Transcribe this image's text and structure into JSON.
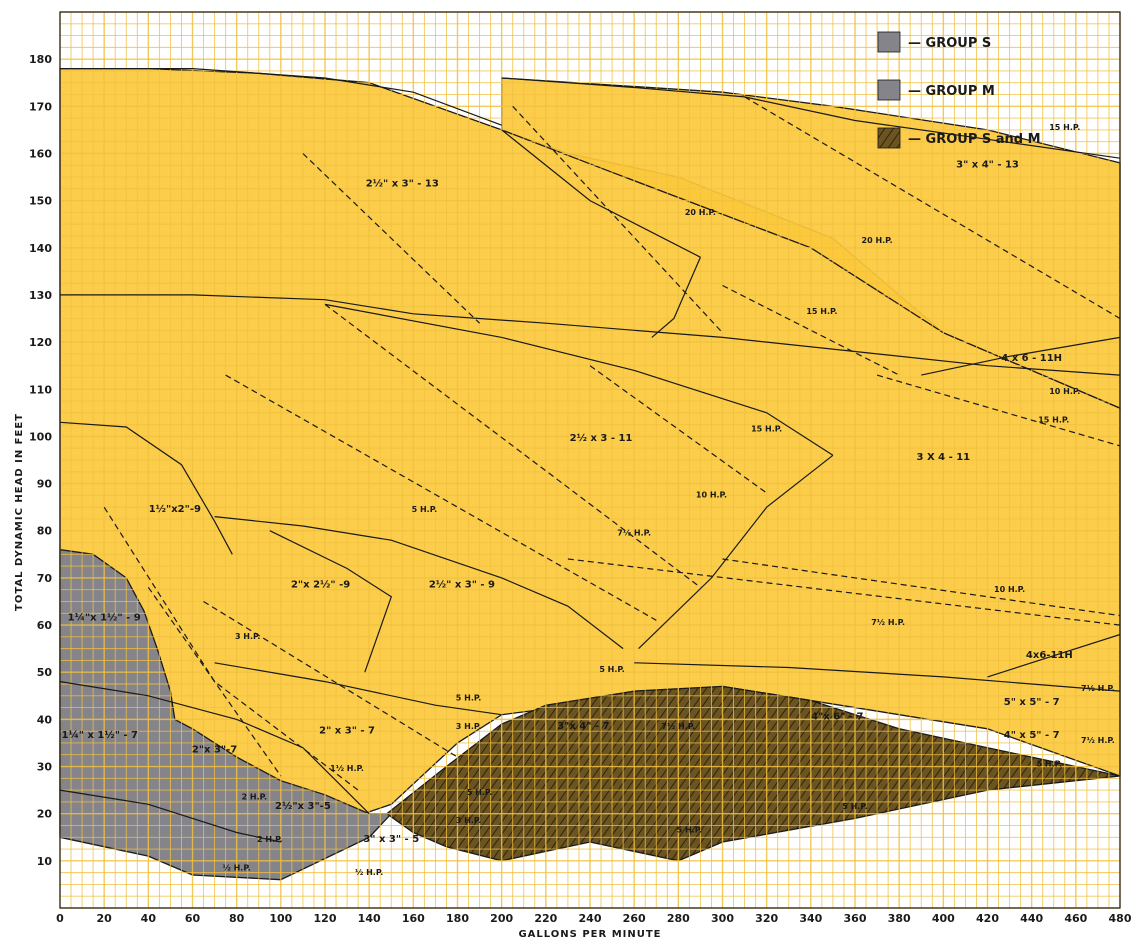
{
  "chart_data": {
    "type": "area",
    "xlabel": "GALLONS PER MINUTE",
    "ylabel": "TOTAL DYNAMIC HEAD IN FEET",
    "xlim": [
      0,
      480
    ],
    "ylim": [
      0,
      190
    ],
    "x_ticks": [
      0,
      20,
      40,
      60,
      80,
      100,
      120,
      140,
      160,
      180,
      200,
      220,
      240,
      260,
      280,
      300,
      320,
      340,
      360,
      380,
      400,
      420,
      440,
      460,
      480
    ],
    "y_ticks": [
      10,
      20,
      30,
      40,
      50,
      60,
      70,
      80,
      90,
      100,
      110,
      120,
      130,
      140,
      150,
      160,
      170,
      180
    ],
    "grid": true,
    "legend_position": "top-right",
    "colors": {
      "background": "#ffffff",
      "grid": "#f0c040",
      "yellow_region": "#fcc93b",
      "group_s": "#84848a",
      "group_m": "#84848a",
      "group_s_and_m": "#6b5420",
      "line": "#1a1a1a"
    },
    "legend": [
      {
        "label": "— GROUP S",
        "group": "group_s"
      },
      {
        "label": "— GROUP M",
        "group": "group_m"
      },
      {
        "label": "— GROUP S and M",
        "group": "group_s_and_m"
      }
    ],
    "regions": [
      {
        "group": "yellow",
        "points": [
          [
            0,
            178
          ],
          [
            40,
            178
          ],
          [
            90,
            177
          ],
          [
            140,
            175
          ],
          [
            200,
            165
          ],
          [
            230,
            160
          ],
          [
            280,
            155
          ],
          [
            350,
            142
          ],
          [
            400,
            122
          ],
          [
            480,
            106
          ],
          [
            480,
            28
          ],
          [
            420,
            38
          ],
          [
            300,
            47
          ],
          [
            200,
            41
          ],
          [
            180,
            35
          ],
          [
            150,
            22
          ],
          [
            100,
            14
          ],
          [
            60,
            13
          ],
          [
            40,
            14
          ],
          [
            0,
            16
          ]
        ]
      },
      {
        "group": "yellow",
        "points": [
          [
            200,
            176
          ],
          [
            300,
            173
          ],
          [
            350,
            170
          ],
          [
            420,
            165
          ],
          [
            480,
            158
          ],
          [
            480,
            106
          ],
          [
            400,
            122
          ],
          [
            340,
            140
          ],
          [
            250,
            156
          ],
          [
            200,
            165
          ]
        ]
      },
      {
        "group": "group_s",
        "points": [
          [
            0,
            76
          ],
          [
            15,
            75
          ],
          [
            30,
            70
          ],
          [
            38,
            63
          ],
          [
            44,
            55
          ],
          [
            50,
            46
          ],
          [
            52,
            40
          ],
          [
            60,
            38
          ],
          [
            80,
            32
          ],
          [
            100,
            27
          ],
          [
            120,
            24
          ],
          [
            140,
            20
          ],
          [
            150,
            20
          ],
          [
            140,
            15
          ],
          [
            100,
            6
          ],
          [
            60,
            7
          ],
          [
            40,
            11
          ],
          [
            0,
            15
          ]
        ]
      },
      {
        "group": "group_s_and_m",
        "points": [
          [
            148,
            20
          ],
          [
            175,
            30
          ],
          [
            200,
            39
          ],
          [
            220,
            43
          ],
          [
            260,
            46
          ],
          [
            300,
            47
          ],
          [
            340,
            44
          ],
          [
            380,
            38
          ],
          [
            420,
            34
          ],
          [
            480,
            28
          ],
          [
            420,
            25
          ],
          [
            360,
            19
          ],
          [
            300,
            14
          ],
          [
            280,
            10
          ],
          [
            240,
            14
          ],
          [
            220,
            12
          ],
          [
            200,
            10
          ],
          [
            175,
            13
          ],
          [
            160,
            16
          ]
        ]
      }
    ],
    "boundaries": [
      {
        "dashed": false,
        "points": [
          [
            0,
            178
          ],
          [
            60,
            178
          ],
          [
            120,
            176
          ],
          [
            160,
            173
          ],
          [
            200,
            166
          ]
        ]
      },
      {
        "dashed": false,
        "points": [
          [
            200,
            176
          ],
          [
            260,
            174
          ],
          [
            310,
            172
          ],
          [
            360,
            167
          ],
          [
            420,
            163
          ],
          [
            480,
            159
          ]
        ]
      },
      {
        "dashed": false,
        "points": [
          [
            0,
            130
          ],
          [
            60,
            130
          ],
          [
            120,
            129
          ],
          [
            160,
            126
          ],
          [
            220,
            124
          ],
          [
            300,
            121
          ],
          [
            360,
            118
          ],
          [
            420,
            115
          ],
          [
            480,
            113
          ]
        ]
      },
      {
        "dashed": false,
        "points": [
          [
            120,
            128
          ],
          [
            200,
            121
          ],
          [
            260,
            114
          ],
          [
            320,
            105
          ],
          [
            350,
            96
          ]
        ]
      },
      {
        "dashed": false,
        "points": [
          [
            0,
            103
          ],
          [
            30,
            102
          ],
          [
            55,
            94
          ],
          [
            70,
            82
          ],
          [
            78,
            75
          ]
        ]
      },
      {
        "dashed": false,
        "points": [
          [
            70,
            83
          ],
          [
            110,
            81
          ],
          [
            150,
            78
          ],
          [
            200,
            70
          ],
          [
            230,
            64
          ],
          [
            255,
            55
          ]
        ]
      },
      {
        "dashed": false,
        "points": [
          [
            70,
            52
          ],
          [
            120,
            48
          ],
          [
            170,
            43
          ],
          [
            200,
            41
          ]
        ]
      },
      {
        "dashed": false,
        "points": [
          [
            200,
            165
          ],
          [
            240,
            150
          ],
          [
            290,
            138
          ]
        ]
      },
      {
        "dashed": false,
        "points": [
          [
            290,
            138
          ],
          [
            278,
            125
          ],
          [
            268,
            121
          ]
        ]
      },
      {
        "dashed": false,
        "points": [
          [
            350,
            96
          ],
          [
            320,
            85
          ],
          [
            295,
            70
          ],
          [
            262,
            55
          ]
        ]
      },
      {
        "dashed": false,
        "points": [
          [
            390,
            113
          ],
          [
            430,
            117
          ],
          [
            480,
            121
          ]
        ]
      },
      {
        "dashed": false,
        "points": [
          [
            420,
            49
          ],
          [
            480,
            58
          ]
        ]
      },
      {
        "dashed": false,
        "points": [
          [
            260,
            52
          ],
          [
            330,
            51
          ],
          [
            400,
            49
          ],
          [
            480,
            46
          ]
        ]
      },
      {
        "dashed": false,
        "points": [
          [
            0,
            48
          ],
          [
            40,
            45
          ],
          [
            80,
            40
          ],
          [
            110,
            34
          ],
          [
            140,
            20
          ]
        ]
      },
      {
        "dashed": false,
        "points": [
          [
            0,
            25
          ],
          [
            40,
            22
          ],
          [
            80,
            16
          ],
          [
            100,
            14
          ]
        ]
      },
      {
        "dashed": false,
        "points": [
          [
            95,
            80
          ],
          [
            130,
            72
          ],
          [
            150,
            66
          ],
          [
            138,
            50
          ]
        ]
      },
      {
        "dashed": true,
        "points": [
          [
            110,
            160
          ],
          [
            190,
            124
          ]
        ]
      },
      {
        "dashed": true,
        "points": [
          [
            205,
            170
          ],
          [
            300,
            122
          ]
        ]
      },
      {
        "dashed": true,
        "points": [
          [
            310,
            172
          ],
          [
            480,
            125
          ]
        ]
      },
      {
        "dashed": true,
        "points": [
          [
            300,
            132
          ],
          [
            380,
            113
          ]
        ]
      },
      {
        "dashed": true,
        "points": [
          [
            370,
            113
          ],
          [
            480,
            98
          ]
        ]
      },
      {
        "dashed": true,
        "points": [
          [
            240,
            115
          ],
          [
            320,
            88
          ]
        ]
      },
      {
        "dashed": true,
        "points": [
          [
            120,
            128
          ],
          [
            290,
            68
          ]
        ]
      },
      {
        "dashed": true,
        "points": [
          [
            75,
            113
          ],
          [
            270,
            61
          ]
        ]
      },
      {
        "dashed": true,
        "points": [
          [
            300,
            74
          ],
          [
            480,
            62
          ]
        ]
      },
      {
        "dashed": true,
        "points": [
          [
            230,
            74
          ],
          [
            480,
            60
          ]
        ]
      },
      {
        "dashed": true,
        "points": [
          [
            20,
            85
          ],
          [
            70,
            48
          ],
          [
            135,
            25
          ]
        ]
      },
      {
        "dashed": true,
        "points": [
          [
            65,
            65
          ],
          [
            180,
            32
          ]
        ]
      },
      {
        "dashed": true,
        "points": [
          [
            40,
            68
          ],
          [
            100,
            28
          ]
        ]
      }
    ],
    "region_labels": [
      {
        "text": "2½\" x 3\" - 13",
        "x": 155,
        "y": 153
      },
      {
        "text": "3\" x 4\" - 13",
        "x": 420,
        "y": 157
      },
      {
        "text": "2½ x 3 - 11",
        "x": 245,
        "y": 99
      },
      {
        "text": "3 X 4 - 11",
        "x": 400,
        "y": 95
      },
      {
        "text": "4 x 6 - 11H",
        "x": 440,
        "y": 116
      },
      {
        "text": "4x6-11H",
        "x": 448,
        "y": 53
      },
      {
        "text": "1½\"x2\"-9",
        "x": 52,
        "y": 84
      },
      {
        "text": "2\"x 2½\" -9",
        "x": 118,
        "y": 68
      },
      {
        "text": "2½\" x 3\" - 9",
        "x": 182,
        "y": 68
      },
      {
        "text": "2\" x 3\" - 7",
        "x": 130,
        "y": 37
      },
      {
        "text": "3\"x 4\" - 7",
        "x": 237,
        "y": 38
      },
      {
        "text": "4\"x 6\" - 7",
        "x": 352,
        "y": 40
      },
      {
        "text": "5\" x 5\" - 7",
        "x": 440,
        "y": 43
      },
      {
        "text": "4\" x 5\" - 7",
        "x": 440,
        "y": 36
      },
      {
        "text": "1¼\"x 1½\" - 9",
        "x": 20,
        "y": 61
      },
      {
        "text": "1¼\" x 1½\" - 7",
        "x": 18,
        "y": 36
      },
      {
        "text": "2\"x 3\"-7",
        "x": 70,
        "y": 33
      },
      {
        "text": "2½\"x 3\"-5",
        "x": 110,
        "y": 21
      },
      {
        "text": "3\" x 3\" - 5",
        "x": 150,
        "y": 14
      }
    ],
    "hp_labels": [
      {
        "text": "15 H.P.",
        "x": 455,
        "y": 165
      },
      {
        "text": "20 H.P.",
        "x": 370,
        "y": 141
      },
      {
        "text": "20 H.P.",
        "x": 290,
        "y": 147
      },
      {
        "text": "15 H.P.",
        "x": 345,
        "y": 126
      },
      {
        "text": "15 H.P.",
        "x": 450,
        "y": 103
      },
      {
        "text": "10 H.P.",
        "x": 455,
        "y": 109
      },
      {
        "text": "15 H.P.",
        "x": 320,
        "y": 101
      },
      {
        "text": "10 H.P.",
        "x": 295,
        "y": 87
      },
      {
        "text": "7½ H.P.",
        "x": 260,
        "y": 79
      },
      {
        "text": "5 H.P.",
        "x": 165,
        "y": 84
      },
      {
        "text": "10 H.P.",
        "x": 430,
        "y": 67
      },
      {
        "text": "7½ H.P.",
        "x": 375,
        "y": 60
      },
      {
        "text": "5 H.P.",
        "x": 250,
        "y": 50
      },
      {
        "text": "5 H.P.",
        "x": 185,
        "y": 44
      },
      {
        "text": "3 H.P.",
        "x": 85,
        "y": 57
      },
      {
        "text": "3 H.P.",
        "x": 185,
        "y": 38
      },
      {
        "text": "1½ H.P.",
        "x": 130,
        "y": 29
      },
      {
        "text": "7½ H.P.",
        "x": 470,
        "y": 46
      },
      {
        "text": "7½ H.P.",
        "x": 470,
        "y": 35
      },
      {
        "text": "5 H.P.",
        "x": 448,
        "y": 30
      },
      {
        "text": "7½ H.P.",
        "x": 280,
        "y": 38
      },
      {
        "text": "5 H.P.",
        "x": 360,
        "y": 21
      },
      {
        "text": "5 H.P.",
        "x": 285,
        "y": 16
      },
      {
        "text": "5 H.P.",
        "x": 190,
        "y": 24
      },
      {
        "text": "3 H.P.",
        "x": 185,
        "y": 18
      },
      {
        "text": "½ H.P.",
        "x": 80,
        "y": 8
      },
      {
        "text": "½ H.P.",
        "x": 140,
        "y": 7
      },
      {
        "text": "2 H.P.",
        "x": 95,
        "y": 14
      },
      {
        "text": "2 H.P.",
        "x": 88,
        "y": 23
      }
    ]
  }
}
